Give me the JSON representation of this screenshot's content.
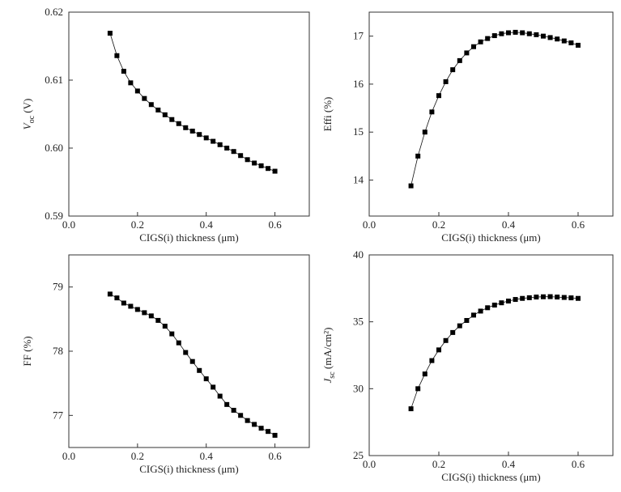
{
  "chart_data": [
    {
      "type": "scatter",
      "ylabel_main": "V",
      "ylabel_sub": "oc",
      "ylabel_unit": "(V)",
      "xlabel": "CIGS(i) thickness (μm)",
      "xlim": [
        0,
        0.7
      ],
      "ylim": [
        0.59,
        0.62
      ],
      "xticks": [
        0.0,
        0.2,
        0.4,
        0.6
      ],
      "xtick_labels": [
        "0.0",
        "0.2",
        "0.4",
        "0.6"
      ],
      "yticks": [
        0.59,
        0.6,
        0.61,
        0.62
      ],
      "ytick_labels": [
        "0.59",
        "0.60",
        "0.61",
        "0.62"
      ],
      "x": [
        0.12,
        0.14,
        0.16,
        0.18,
        0.2,
        0.22,
        0.24,
        0.26,
        0.28,
        0.3,
        0.32,
        0.34,
        0.36,
        0.38,
        0.4,
        0.42,
        0.44,
        0.46,
        0.48,
        0.5,
        0.52,
        0.54,
        0.56,
        0.58,
        0.6
      ],
      "y": [
        0.6169,
        0.6136,
        0.6113,
        0.6096,
        0.6084,
        0.6073,
        0.6064,
        0.6056,
        0.6049,
        0.6042,
        0.6036,
        0.603,
        0.6025,
        0.602,
        0.6015,
        0.601,
        0.6005,
        0.6,
        0.5995,
        0.5989,
        0.5983,
        0.5978,
        0.5974,
        0.597,
        0.5966
      ]
    },
    {
      "type": "scatter",
      "ylabel_main": "Effi",
      "ylabel_sub": "",
      "ylabel_unit": "(%)",
      "xlabel": "CIGS(i) thickness (μm)",
      "xlim": [
        0,
        0.7
      ],
      "ylim": [
        13.25,
        17.5
      ],
      "xticks": [
        0.0,
        0.2,
        0.4,
        0.6
      ],
      "xtick_labels": [
        "0.0",
        "0.2",
        "0.4",
        "0.6"
      ],
      "yticks": [
        14,
        15,
        16,
        17
      ],
      "ytick_labels": [
        "14",
        "15",
        "16",
        "17"
      ],
      "x": [
        0.12,
        0.14,
        0.16,
        0.18,
        0.2,
        0.22,
        0.24,
        0.26,
        0.28,
        0.3,
        0.32,
        0.34,
        0.36,
        0.38,
        0.4,
        0.42,
        0.44,
        0.46,
        0.48,
        0.5,
        0.52,
        0.54,
        0.56,
        0.58,
        0.6
      ],
      "y": [
        13.88,
        14.5,
        15.0,
        15.42,
        15.76,
        16.05,
        16.3,
        16.49,
        16.65,
        16.78,
        16.88,
        16.95,
        17.01,
        17.05,
        17.07,
        17.08,
        17.07,
        17.05,
        17.03,
        17.0,
        16.97,
        16.94,
        16.9,
        16.86,
        16.81
      ]
    },
    {
      "type": "scatter",
      "ylabel_main": "FF",
      "ylabel_sub": "",
      "ylabel_unit": "(%)",
      "xlabel": "CIGS(i) thickness (μm)",
      "xlim": [
        0,
        0.7
      ],
      "ylim": [
        76.5,
        79.5
      ],
      "xticks": [
        0.0,
        0.2,
        0.4,
        0.6
      ],
      "xtick_labels": [
        "0.0",
        "0.2",
        "0.4",
        "0.6"
      ],
      "yticks": [
        77,
        78,
        79
      ],
      "ytick_labels": [
        "77",
        "78",
        "79"
      ],
      "x": [
        0.12,
        0.14,
        0.16,
        0.18,
        0.2,
        0.22,
        0.24,
        0.26,
        0.28,
        0.3,
        0.32,
        0.34,
        0.36,
        0.38,
        0.4,
        0.42,
        0.44,
        0.46,
        0.48,
        0.5,
        0.52,
        0.54,
        0.56,
        0.58,
        0.6
      ],
      "y": [
        78.89,
        78.83,
        78.75,
        78.7,
        78.65,
        78.6,
        78.55,
        78.48,
        78.39,
        78.27,
        78.13,
        77.98,
        77.84,
        77.7,
        77.57,
        77.44,
        77.3,
        77.17,
        77.08,
        77.0,
        76.92,
        76.86,
        76.8,
        76.75,
        76.69
      ]
    },
    {
      "type": "scatter",
      "ylabel_main": "J",
      "ylabel_sub": "sc",
      "ylabel_unit": "(mA/cm²)",
      "xlabel": "CIGS(i) thickness (μm)",
      "xlim": [
        0,
        0.7
      ],
      "ylim": [
        25,
        40
      ],
      "xticks": [
        0.0,
        0.2,
        0.4,
        0.6
      ],
      "xtick_labels": [
        "0.0",
        "0.2",
        "0.4",
        "0.6"
      ],
      "yticks": [
        25,
        30,
        35,
        40
      ],
      "ytick_labels": [
        "25",
        "30",
        "35",
        "40"
      ],
      "x": [
        0.12,
        0.14,
        0.16,
        0.18,
        0.2,
        0.22,
        0.24,
        0.26,
        0.28,
        0.3,
        0.32,
        0.34,
        0.36,
        0.38,
        0.4,
        0.42,
        0.44,
        0.46,
        0.48,
        0.5,
        0.52,
        0.54,
        0.56,
        0.58,
        0.6
      ],
      "y": [
        28.5,
        30.0,
        31.1,
        32.1,
        32.9,
        33.6,
        34.2,
        34.7,
        35.1,
        35.5,
        35.8,
        36.05,
        36.25,
        36.42,
        36.55,
        36.67,
        36.75,
        36.8,
        36.85,
        36.87,
        36.88,
        36.85,
        36.82,
        36.79,
        36.75
      ]
    }
  ]
}
